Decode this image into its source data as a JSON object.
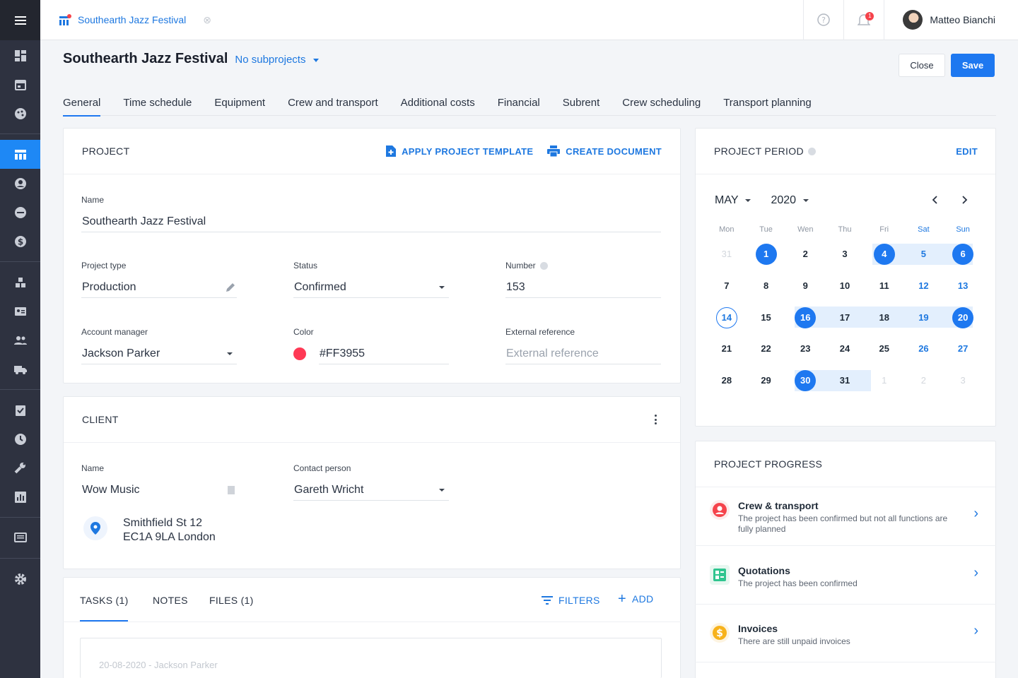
{
  "app": {
    "project_name": "Southearth Jazz Festival"
  },
  "user": {
    "name": "Matteo Bianchi",
    "notifications": "1"
  },
  "header": {
    "title": "Southearth Jazz Festival",
    "subprojects": "No subprojects",
    "close_label": "Close",
    "save_label": "Save"
  },
  "tabs": [
    {
      "label": "General",
      "active": true
    },
    {
      "label": "Time schedule"
    },
    {
      "label": "Equipment"
    },
    {
      "label": "Crew and transport"
    },
    {
      "label": "Additional costs"
    },
    {
      "label": "Financial"
    },
    {
      "label": "Subrent"
    },
    {
      "label": "Crew scheduling"
    },
    {
      "label": "Transport planning"
    }
  ],
  "project": {
    "section_title": "PROJECT",
    "apply_template": "APPLY PROJECT TEMPLATE",
    "create_document": "CREATE DOCUMENT",
    "name_label": "Name",
    "name_value": "Southearth Jazz Festival",
    "type_label": "Project type",
    "type_value": "Production",
    "status_label": "Status",
    "status_value": "Confirmed",
    "number_label": "Number",
    "number_value": "153",
    "manager_label": "Account manager",
    "manager_value": "Jackson Parker",
    "color_label": "Color",
    "color_value": "#FF3955",
    "extref_label": "External reference",
    "extref_placeholder": "External reference"
  },
  "client": {
    "section_title": "CLIENT",
    "name_label": "Name",
    "name_value": "Wow Music",
    "contact_label": "Contact person",
    "contact_value": "Gareth Wricht",
    "address_line1": "Smithfield St 12",
    "address_line2": "EC1A 9LA London"
  },
  "tasks": {
    "tasks_tab": "TASKS (1)",
    "notes_tab": "NOTES",
    "files_tab": "FILES (1)",
    "filters_label": "FILTERS",
    "add_label": "ADD",
    "first_task_meta": "20-08-2020 - Jackson Parker"
  },
  "period": {
    "section_title": "PROJECT PERIOD",
    "edit_label": "EDIT",
    "month": "MAY",
    "year": "2020",
    "weekdays": [
      "Mon",
      "Tue",
      "Wen",
      "Thu",
      "Fri",
      "Sat",
      "Sun"
    ],
    "weeks": [
      [
        "31",
        "1",
        "2",
        "3",
        "4",
        "5",
        "6"
      ],
      [
        "7",
        "8",
        "9",
        "10",
        "11",
        "12",
        "13"
      ],
      [
        "14",
        "15",
        "16",
        "17",
        "18",
        "19",
        "20"
      ],
      [
        "21",
        "22",
        "23",
        "24",
        "25",
        "26",
        "27"
      ],
      [
        "28",
        "29",
        "30",
        "31",
        "1",
        "2",
        "3"
      ]
    ]
  },
  "progress": {
    "section_title": "PROJECT PROGRESS",
    "items": [
      {
        "title": "Crew & transport",
        "text": "The project has been confirmed but not all functions are fully planned",
        "icon": "user-circle-icon",
        "color": "#f5434b"
      },
      {
        "title": "Quotations",
        "text": "The project has been confirmed",
        "icon": "quotation-icon",
        "color": "#2fc58f"
      },
      {
        "title": "Invoices",
        "text": "There are still unpaid invoices",
        "icon": "dollar-icon",
        "color": "#f7b21b"
      }
    ]
  },
  "colors": {
    "accent": "#1e78f0",
    "sidebar": "#2e3240",
    "project_color": "#FF3955"
  }
}
